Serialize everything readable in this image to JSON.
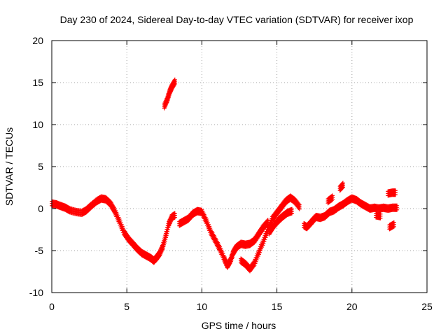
{
  "chart_data": {
    "type": "scatter",
    "title": "Day 230 of 2024, Sidereal Day-to-day VTEC variation (SDTVAR) for receiver ixop",
    "xlabel": "GPS time / hours",
    "ylabel": "SDTVAR / TECUs",
    "xlim": [
      0,
      25
    ],
    "ylim": [
      -10,
      20
    ],
    "xticks": [
      0,
      5,
      10,
      15,
      20,
      25
    ],
    "yticks": [
      -10,
      -5,
      0,
      5,
      10,
      15,
      20
    ],
    "grid": true,
    "marker": "+",
    "series": [
      {
        "name": "SDTVAR",
        "color": "#ff0000",
        "segments": [
          [
            [
              0.0,
              0.6
            ],
            [
              0.3,
              0.5
            ],
            [
              0.6,
              0.3
            ],
            [
              0.9,
              0.1
            ],
            [
              1.2,
              -0.2
            ],
            [
              1.6,
              -0.4
            ],
            [
              2.0,
              -0.5
            ],
            [
              2.3,
              -0.2
            ],
            [
              2.6,
              0.3
            ],
            [
              3.0,
              0.9
            ],
            [
              3.3,
              1.2
            ],
            [
              3.6,
              1.1
            ],
            [
              3.9,
              0.6
            ],
            [
              4.2,
              -0.3
            ],
            [
              4.5,
              -1.5
            ],
            [
              4.8,
              -2.8
            ],
            [
              5.1,
              -3.6
            ],
            [
              5.4,
              -4.2
            ],
            [
              5.7,
              -4.8
            ],
            [
              6.0,
              -5.3
            ],
            [
              6.3,
              -5.6
            ],
            [
              6.6,
              -5.9
            ],
            [
              6.8,
              -6.2
            ],
            [
              7.0,
              -5.8
            ],
            [
              7.2,
              -5.3
            ],
            [
              7.4,
              -4.5
            ],
            [
              7.6,
              -3.2
            ],
            [
              7.8,
              -1.8
            ],
            [
              8.0,
              -1.0
            ],
            [
              8.2,
              -0.8
            ]
          ],
          [
            [
              7.5,
              12.2
            ],
            [
              7.7,
              13.0
            ],
            [
              7.85,
              13.9
            ],
            [
              8.0,
              14.5
            ],
            [
              8.2,
              15.1
            ]
          ],
          [
            [
              8.5,
              -1.8
            ],
            [
              8.8,
              -1.5
            ],
            [
              9.1,
              -1.2
            ],
            [
              9.4,
              -0.6
            ],
            [
              9.7,
              -0.3
            ],
            [
              10.0,
              -0.4
            ],
            [
              10.3,
              -1.5
            ],
            [
              10.6,
              -2.8
            ],
            [
              10.9,
              -3.8
            ],
            [
              11.2,
              -4.8
            ],
            [
              11.5,
              -6.0
            ],
            [
              11.7,
              -6.8
            ],
            [
              11.9,
              -6.2
            ],
            [
              12.1,
              -5.2
            ],
            [
              12.3,
              -4.6
            ],
            [
              12.6,
              -4.2
            ],
            [
              12.9,
              -4.3
            ],
            [
              13.2,
              -4.2
            ],
            [
              13.5,
              -3.8
            ],
            [
              13.8,
              -3.0
            ],
            [
              14.1,
              -2.2
            ],
            [
              14.4,
              -1.6
            ]
          ],
          [
            [
              12.6,
              -6.2
            ],
            [
              12.9,
              -6.6
            ],
            [
              13.2,
              -7.2
            ],
            [
              13.5,
              -6.5
            ],
            [
              13.8,
              -5.2
            ],
            [
              14.1,
              -3.9
            ],
            [
              14.4,
              -2.5
            ],
            [
              14.7,
              -1.2
            ],
            [
              15.0,
              -0.5
            ],
            [
              15.3,
              0.2
            ],
            [
              15.6,
              0.9
            ],
            [
              15.9,
              1.3
            ],
            [
              16.2,
              0.9
            ],
            [
              16.5,
              0.2
            ]
          ],
          [
            [
              14.5,
              -2.8
            ],
            [
              14.8,
              -2.0
            ],
            [
              15.1,
              -1.4
            ],
            [
              15.4,
              -0.9
            ],
            [
              15.7,
              -0.5
            ],
            [
              16.0,
              -0.3
            ]
          ],
          [
            [
              16.8,
              -2.0
            ],
            [
              17.0,
              -2.2
            ],
            [
              17.3,
              -1.6
            ],
            [
              17.6,
              -1.0
            ],
            [
              17.9,
              -1.1
            ],
            [
              18.2,
              -0.9
            ],
            [
              18.5,
              -0.4
            ],
            [
              18.8,
              -0.2
            ],
            [
              19.1,
              0.2
            ],
            [
              19.4,
              0.5
            ],
            [
              19.7,
              0.9
            ],
            [
              20.0,
              1.2
            ],
            [
              20.3,
              1.0
            ],
            [
              20.6,
              0.6
            ],
            [
              20.9,
              0.3
            ],
            [
              21.2,
              0.0
            ],
            [
              21.5,
              0.1
            ],
            [
              21.8,
              0.0
            ],
            [
              22.1,
              0.1
            ],
            [
              22.4,
              0.0
            ],
            [
              22.7,
              0.1
            ],
            [
              23.0,
              0.1
            ]
          ],
          [
            [
              18.4,
              0.9
            ],
            [
              18.7,
              1.3
            ]
          ],
          [
            [
              19.2,
              2.4
            ],
            [
              19.4,
              2.8
            ]
          ],
          [
            [
              21.6,
              -0.8
            ],
            [
              21.9,
              -0.9
            ]
          ],
          [
            [
              22.4,
              1.8
            ],
            [
              22.7,
              1.9
            ],
            [
              22.9,
              1.9
            ]
          ],
          [
            [
              22.5,
              -2.2
            ],
            [
              22.8,
              -1.9
            ]
          ]
        ]
      }
    ]
  }
}
